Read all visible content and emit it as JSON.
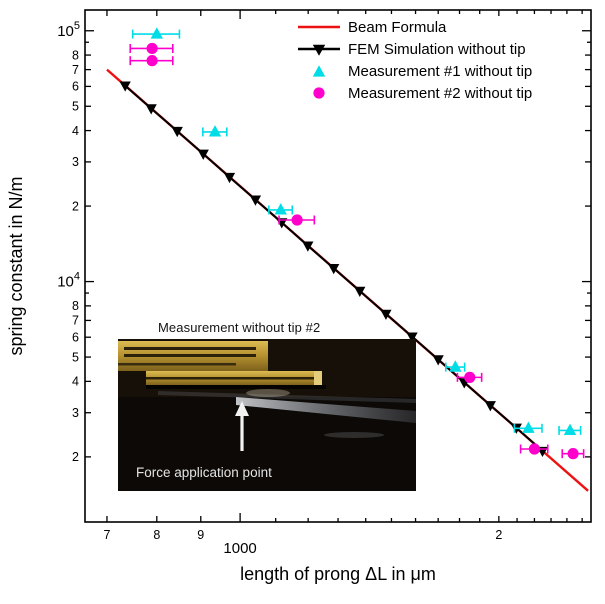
{
  "legend": {
    "entries": [
      {
        "label": "Beam Formula",
        "symbol": "line",
        "color": "#ee1111"
      },
      {
        "label": "FEM Simulation without tip",
        "symbol": "line-triangle-down",
        "color": "#000000"
      },
      {
        "label": "Measurement #1 without tip",
        "symbol": "triangle-up",
        "color": "#00dde6"
      },
      {
        "label": "Measurement #2 without tip",
        "symbol": "circle",
        "color": "#ff00cc"
      }
    ]
  },
  "inset": {
    "title": "Measurement without tip #2",
    "caption": "Force application point"
  },
  "chart_data": {
    "type": "scatter",
    "xscale": "log",
    "yscale": "log",
    "xlabel": "length of prong ΔL in μm",
    "ylabel": "spring constant in N/m",
    "xlim": [
      660,
      2560
    ],
    "ylim": [
      1100,
      121000
    ],
    "x_ticks": {
      "major": [
        {
          "v": 1000,
          "label": "1000"
        }
      ],
      "minor_labeled": [
        {
          "v": 700,
          "label": "7"
        },
        {
          "v": 800,
          "label": "8"
        },
        {
          "v": 900,
          "label": "9"
        },
        {
          "v": 2000,
          "label": "2"
        }
      ],
      "minor": [
        1100,
        1200,
        1300,
        1400,
        1500,
        1600,
        1700,
        1800,
        1900,
        2100,
        2200,
        2300,
        2400,
        2500
      ]
    },
    "y_ticks": {
      "major": [
        {
          "v": 10000,
          "base": "10",
          "exp": "4"
        },
        {
          "v": 100000,
          "base": "10",
          "exp": "5"
        }
      ],
      "minor_labeled": [
        {
          "v": 2000,
          "label": "2"
        },
        {
          "v": 3000,
          "label": "3"
        },
        {
          "v": 4000,
          "label": "4"
        },
        {
          "v": 5000,
          "label": "5"
        },
        {
          "v": 6000,
          "label": "6"
        },
        {
          "v": 7000,
          "label": "7"
        },
        {
          "v": 8000,
          "label": "8"
        },
        {
          "v": 20000,
          "label": "2"
        },
        {
          "v": 30000,
          "label": "3"
        },
        {
          "v": 40000,
          "label": "4"
        },
        {
          "v": 50000,
          "label": "5"
        },
        {
          "v": 60000,
          "label": "6"
        },
        {
          "v": 70000,
          "label": "7"
        },
        {
          "v": 80000,
          "label": "8"
        }
      ],
      "minor": [
        9000,
        90000
      ]
    },
    "series": [
      {
        "name": "Beam Formula",
        "kind": "line",
        "color": "#ee1111",
        "line_width": 2.4,
        "x": [
          700,
          2540
        ],
        "y": [
          70000,
          1465
        ]
      },
      {
        "name": "FEM Simulation without tip",
        "kind": "line-marker",
        "marker": "triangle-down",
        "color": "#000000",
        "line_width": 2,
        "x": [
          735,
          788,
          845,
          906,
          972,
          1042,
          1118,
          1199,
          1285,
          1378,
          1478,
          1585,
          1700,
          1823,
          1955,
          2096,
          2248
        ],
        "y": [
          60400,
          49000,
          39800,
          32300,
          26100,
          21200,
          17200,
          13900,
          11300,
          9170,
          7430,
          6030,
          4890,
          3960,
          3210,
          2610,
          2110
        ]
      },
      {
        "name": "Measurement #1 without tip",
        "kind": "marker-xerr",
        "marker": "triangle-up",
        "color": "#00dde6",
        "points": [
          {
            "x": 800,
            "y": 97000,
            "xerr": 50
          },
          {
            "x": 935,
            "y": 39500,
            "xerr": 30
          },
          {
            "x": 1115,
            "y": 19300,
            "xerr": 35
          },
          {
            "x": 1780,
            "y": 4560,
            "xerr": 45
          },
          {
            "x": 2165,
            "y": 2600,
            "xerr": 80
          },
          {
            "x": 2420,
            "y": 2550,
            "xerr": 70
          }
        ]
      },
      {
        "name": "Measurement #2 without tip",
        "kind": "marker-xerr",
        "marker": "circle",
        "color": "#ff00cc",
        "points": [
          {
            "x": 790,
            "y": 85000,
            "xerr": 45
          },
          {
            "x": 790,
            "y": 76000,
            "xerr": 45
          },
          {
            "x": 1165,
            "y": 17600,
            "xerr": 55
          },
          {
            "x": 1850,
            "y": 4150,
            "xerr": 60
          },
          {
            "x": 2200,
            "y": 2150,
            "xerr": 80
          },
          {
            "x": 2440,
            "y": 2060,
            "xerr": 70
          }
        ]
      }
    ]
  }
}
